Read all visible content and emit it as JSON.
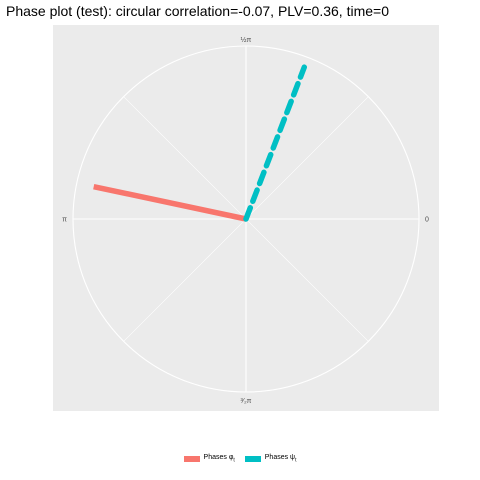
{
  "chart_data": {
    "type": "polar-phase",
    "title": "Phase plot (test): circular correlation=-0.07, PLV=0.36, time=0",
    "angle_ticks": [
      {
        "label": "½π",
        "angle_deg": 90
      },
      {
        "label": "π",
        "angle_deg": 180
      },
      {
        "label": "³⁄₂π",
        "angle_deg": 270
      },
      {
        "label": "0",
        "angle_deg": 0
      }
    ],
    "grid": true,
    "legend_position": "bottom",
    "series": [
      {
        "name": "Phases φt",
        "color": "#f8766d",
        "linetype": "solid",
        "angle_deg": 168,
        "magnitude": 0.9
      },
      {
        "name": "Phases ψt",
        "color": "#00bfc4",
        "linetype": "dashed",
        "angle_deg": 69,
        "magnitude": 0.94
      }
    ]
  },
  "legend": {
    "phi_label": "Phases φ",
    "phi_sub": "t",
    "psi_label": "Phases ψ",
    "psi_sub": "t"
  }
}
